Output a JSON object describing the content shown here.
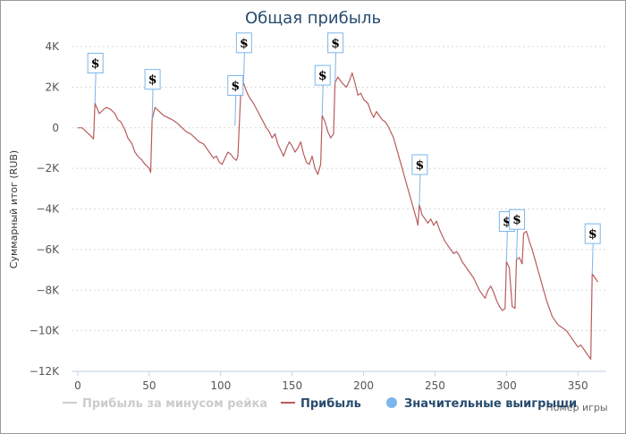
{
  "chart_data": {
    "type": "line",
    "title": "Общая прибыль",
    "xlabel": "Номер игры",
    "ylabel": "Суммарный итог (RUB)",
    "xlim": [
      0,
      368
    ],
    "ylim": [
      -12000,
      4000
    ],
    "x_ticks": [
      "0",
      "50",
      "100",
      "150",
      "200",
      "250",
      "300",
      "350"
    ],
    "y_ticks": [
      "4K",
      "2K",
      "0",
      "−2K",
      "−4K",
      "−6K",
      "−8K",
      "−10K",
      "−12K"
    ],
    "grid": true,
    "legend_position": "bottom",
    "legend": [
      {
        "label": "Прибыль за минусом рейка",
        "color": "#cccccc",
        "marker": "line"
      },
      {
        "label": "Прибыль",
        "color": "#b85c5c",
        "marker": "line"
      },
      {
        "label": "Значительные выигрыши",
        "color": "#7cb5ec",
        "marker": "circle"
      }
    ],
    "series": [
      {
        "name": "Прибыль",
        "color": "#b85c5c",
        "points": [
          [
            0,
            0
          ],
          [
            3,
            0
          ],
          [
            6,
            -200
          ],
          [
            9,
            -400
          ],
          [
            11,
            -550
          ],
          [
            12,
            1200
          ],
          [
            15,
            700
          ],
          [
            18,
            900
          ],
          [
            20,
            1000
          ],
          [
            23,
            900
          ],
          [
            26,
            700
          ],
          [
            28,
            400
          ],
          [
            30,
            300
          ],
          [
            33,
            -100
          ],
          [
            35,
            -500
          ],
          [
            38,
            -800
          ],
          [
            40,
            -1200
          ],
          [
            42,
            -1400
          ],
          [
            45,
            -1600
          ],
          [
            47,
            -1800
          ],
          [
            50,
            -2000
          ],
          [
            51,
            -2200
          ],
          [
            52,
            400
          ],
          [
            54,
            1000
          ],
          [
            57,
            800
          ],
          [
            60,
            600
          ],
          [
            63,
            500
          ],
          [
            66,
            400
          ],
          [
            68,
            300
          ],
          [
            70,
            200
          ],
          [
            73,
            0
          ],
          [
            76,
            -200
          ],
          [
            79,
            -300
          ],
          [
            82,
            -500
          ],
          [
            85,
            -700
          ],
          [
            88,
            -800
          ],
          [
            90,
            -1000
          ],
          [
            92,
            -1200
          ],
          [
            95,
            -1500
          ],
          [
            97,
            -1400
          ],
          [
            99,
            -1700
          ],
          [
            101,
            -1800
          ],
          [
            103,
            -1500
          ],
          [
            105,
            -1200
          ],
          [
            107,
            -1300
          ],
          [
            109,
            -1500
          ],
          [
            111,
            -1600
          ],
          [
            112,
            -1400
          ],
          [
            114,
            1700
          ],
          [
            116,
            2200
          ],
          [
            118,
            1800
          ],
          [
            120,
            1500
          ],
          [
            123,
            1200
          ],
          [
            126,
            800
          ],
          [
            129,
            400
          ],
          [
            132,
            0
          ],
          [
            134,
            -200
          ],
          [
            136,
            -500
          ],
          [
            138,
            -300
          ],
          [
            140,
            -800
          ],
          [
            142,
            -1100
          ],
          [
            144,
            -1400
          ],
          [
            146,
            -1000
          ],
          [
            148,
            -700
          ],
          [
            150,
            -900
          ],
          [
            152,
            -1200
          ],
          [
            154,
            -1000
          ],
          [
            156,
            -700
          ],
          [
            158,
            -1300
          ],
          [
            160,
            -1700
          ],
          [
            162,
            -1800
          ],
          [
            164,
            -1400
          ],
          [
            166,
            -2000
          ],
          [
            168,
            -2300
          ],
          [
            170,
            -1800
          ],
          [
            171,
            600
          ],
          [
            173,
            300
          ],
          [
            175,
            -200
          ],
          [
            177,
            -500
          ],
          [
            178,
            -400
          ],
          [
            179,
            -300
          ],
          [
            180,
            2200
          ],
          [
            182,
            2500
          ],
          [
            185,
            2200
          ],
          [
            188,
            2000
          ],
          [
            190,
            2300
          ],
          [
            192,
            2700
          ],
          [
            194,
            2200
          ],
          [
            196,
            1600
          ],
          [
            198,
            1700
          ],
          [
            200,
            1400
          ],
          [
            203,
            1200
          ],
          [
            205,
            800
          ],
          [
            207,
            500
          ],
          [
            209,
            800
          ],
          [
            211,
            600
          ],
          [
            213,
            400
          ],
          [
            215,
            300
          ],
          [
            217,
            100
          ],
          [
            219,
            -200
          ],
          [
            221,
            -500
          ],
          [
            223,
            -1000
          ],
          [
            225,
            -1500
          ],
          [
            227,
            -2000
          ],
          [
            229,
            -2500
          ],
          [
            231,
            -3000
          ],
          [
            233,
            -3500
          ],
          [
            235,
            -4000
          ],
          [
            237,
            -4500
          ],
          [
            238,
            -4800
          ],
          [
            239,
            -3800
          ],
          [
            241,
            -4300
          ],
          [
            243,
            -4500
          ],
          [
            245,
            -4700
          ],
          [
            247,
            -4500
          ],
          [
            249,
            -4800
          ],
          [
            251,
            -4600
          ],
          [
            253,
            -5000
          ],
          [
            255,
            -5300
          ],
          [
            257,
            -5600
          ],
          [
            259,
            -5800
          ],
          [
            261,
            -6000
          ],
          [
            263,
            -6200
          ],
          [
            265,
            -6100
          ],
          [
            267,
            -6300
          ],
          [
            269,
            -6600
          ],
          [
            271,
            -6800
          ],
          [
            273,
            -7000
          ],
          [
            275,
            -7200
          ],
          [
            277,
            -7400
          ],
          [
            279,
            -7700
          ],
          [
            281,
            -8000
          ],
          [
            283,
            -8200
          ],
          [
            285,
            -8400
          ],
          [
            287,
            -8000
          ],
          [
            289,
            -7800
          ],
          [
            291,
            -8100
          ],
          [
            293,
            -8500
          ],
          [
            295,
            -8800
          ],
          [
            297,
            -9000
          ],
          [
            299,
            -8900
          ],
          [
            300,
            -6600
          ],
          [
            302,
            -6900
          ],
          [
            304,
            -8800
          ],
          [
            306,
            -8900
          ],
          [
            307,
            -6500
          ],
          [
            309,
            -6400
          ],
          [
            311,
            -6700
          ],
          [
            312,
            -5200
          ],
          [
            314,
            -5100
          ],
          [
            316,
            -5600
          ],
          [
            318,
            -6000
          ],
          [
            320,
            -6500
          ],
          [
            322,
            -7000
          ],
          [
            324,
            -7500
          ],
          [
            326,
            -8000
          ],
          [
            328,
            -8500
          ],
          [
            330,
            -8900
          ],
          [
            332,
            -9300
          ],
          [
            334,
            -9500
          ],
          [
            336,
            -9700
          ],
          [
            338,
            -9800
          ],
          [
            340,
            -9900
          ],
          [
            342,
            -10000
          ],
          [
            344,
            -10200
          ],
          [
            346,
            -10400
          ],
          [
            348,
            -10600
          ],
          [
            350,
            -10800
          ],
          [
            352,
            -10700
          ],
          [
            354,
            -10900
          ],
          [
            356,
            -11100
          ],
          [
            358,
            -11300
          ],
          [
            359,
            -11400
          ],
          [
            360,
            -7200
          ],
          [
            362,
            -7400
          ],
          [
            364,
            -7600
          ]
        ]
      }
    ],
    "big_wins": [
      {
        "x": 12,
        "y": 1200,
        "label": "$"
      },
      {
        "x": 52,
        "y": 400,
        "label": "$"
      },
      {
        "x": 110,
        "y": 100,
        "label": "$"
      },
      {
        "x": 116,
        "y": 2200,
        "label": "$"
      },
      {
        "x": 171,
        "y": 600,
        "label": "$"
      },
      {
        "x": 180,
        "y": 2200,
        "label": "$"
      },
      {
        "x": 239,
        "y": -3800,
        "label": "$"
      },
      {
        "x": 300,
        "y": -6600,
        "label": "$"
      },
      {
        "x": 307,
        "y": -6500,
        "label": "$"
      },
      {
        "x": 360,
        "y": -7200,
        "label": "$"
      }
    ]
  }
}
